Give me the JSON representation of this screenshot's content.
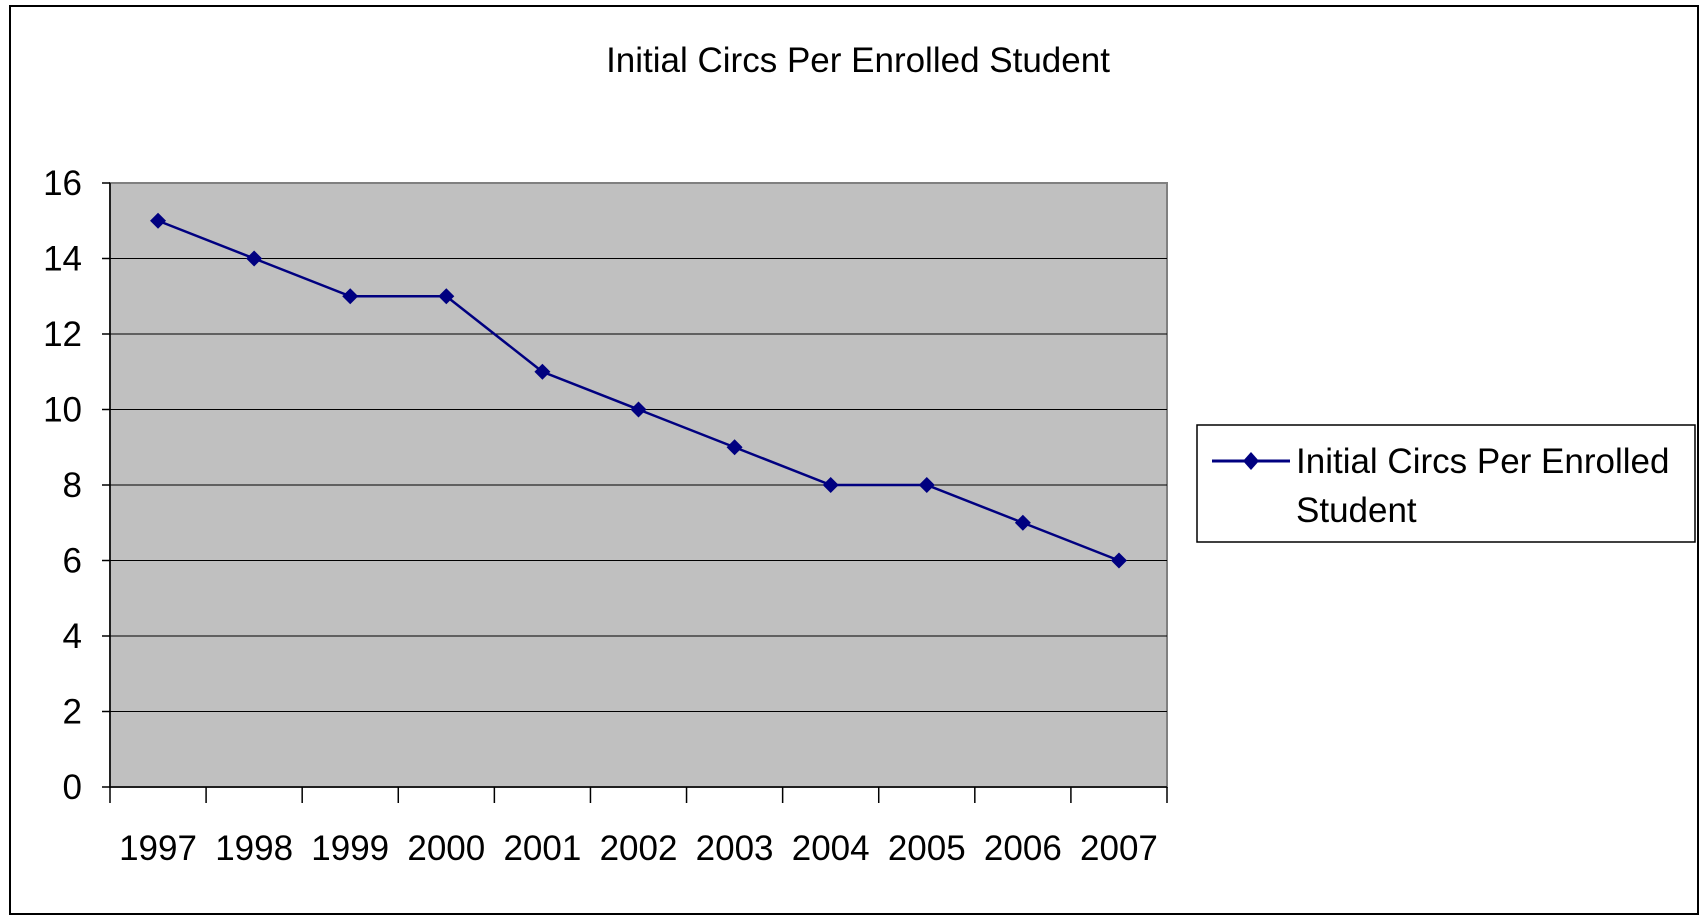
{
  "chart_data": {
    "type": "line",
    "title": "Initial Circs Per Enrolled Student",
    "categories": [
      "1997",
      "1998",
      "1999",
      "2000",
      "2001",
      "2002",
      "2003",
      "2004",
      "2005",
      "2006",
      "2007"
    ],
    "series": [
      {
        "name": "Initial Circs Per Enrolled Student",
        "values": [
          15,
          14,
          13,
          13,
          11,
          10,
          9,
          8,
          8,
          7,
          6
        ]
      }
    ],
    "yticks": [
      "0",
      "2",
      "4",
      "6",
      "8",
      "10",
      "12",
      "14",
      "16"
    ],
    "ylim": [
      0,
      16
    ],
    "xlabel": "",
    "ylabel": "",
    "grid": true,
    "legend_position": "right",
    "legend_lines": [
      "Initial Circs Per Enrolled",
      "Student"
    ],
    "colors": {
      "series": "#000080",
      "plot_background": "#c0c0c0",
      "gridline": "#000000",
      "frame": "#000000"
    }
  }
}
